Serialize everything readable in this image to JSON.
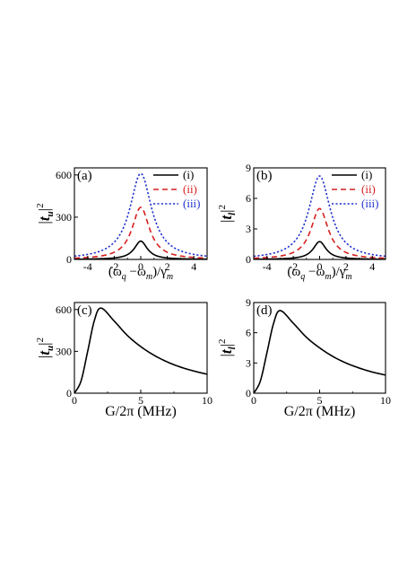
{
  "chart_data": [
    {
      "panel": "(a)",
      "type": "line",
      "ylabel_text": "|t",
      "ylabel_sub": "u",
      "ylabel_sup": "2",
      "xlabel": {
        "open": "(ω",
        "sub1": "q",
        "mid": " −ω",
        "sub2": "m",
        "close": ")/γ",
        "sub3": "m"
      },
      "xlim": [
        -5,
        5
      ],
      "ylim": [
        0,
        650
      ],
      "xticks": [
        -4,
        -2,
        0,
        2,
        4
      ],
      "yticks": [
        0,
        300,
        600
      ],
      "legend": "top-right",
      "series": [
        {
          "name": "(i)",
          "color": "#000000",
          "dash": "solid",
          "peak": 130,
          "width": 0.6
        },
        {
          "name": "(ii)",
          "color": "#d62020",
          "dash": "dashed",
          "peak": 370,
          "width": 0.8
        },
        {
          "name": "(iii)",
          "color": "#2233cc",
          "dash": "dotted",
          "peak": 610,
          "width": 1.0
        }
      ]
    },
    {
      "panel": "(b)",
      "type": "line",
      "ylabel_text": "|t",
      "ylabel_sub": "l",
      "ylabel_sup": "2",
      "xlabel": {
        "open": "(ω",
        "sub1": "q",
        "mid": " −ω",
        "sub2": "m",
        "close": ")/γ",
        "sub3": "m"
      },
      "xlim": [
        -5,
        5
      ],
      "ylim": [
        0,
        9
      ],
      "xticks": [
        -4,
        -2,
        0,
        2,
        4
      ],
      "yticks": [
        0,
        3,
        6,
        9
      ],
      "legend": "top-right",
      "series": [
        {
          "name": "(i)",
          "color": "#000000",
          "dash": "solid",
          "peak": 1.75,
          "width": 0.6
        },
        {
          "name": "(ii)",
          "color": "#d62020",
          "dash": "dashed",
          "peak": 5.0,
          "width": 0.8
        },
        {
          "name": "(iii)",
          "color": "#2233cc",
          "dash": "dotted",
          "peak": 8.2,
          "width": 1.0
        }
      ]
    },
    {
      "panel": "(c)",
      "type": "line",
      "ylabel_text": "|t",
      "ylabel_sub": "u",
      "ylabel_sup": "2",
      "xlabel_text": "G/2π  (MHz)",
      "xlim": [
        0,
        10
      ],
      "ylim": [
        0,
        650
      ],
      "xticks": [
        0,
        5,
        10
      ],
      "yticks": [
        0,
        300,
        600
      ],
      "series": [
        {
          "color": "#000000",
          "peak": 610,
          "peak_x": 2.0,
          "x": [
            0,
            0.5,
            1,
            1.5,
            2,
            3,
            4,
            5,
            6,
            7,
            8,
            9,
            10
          ],
          "y": [
            0,
            88,
            300,
            520,
            610,
            517,
            413,
            334,
            272,
            224,
            187,
            159,
            136
          ]
        }
      ]
    },
    {
      "panel": "(d)",
      "type": "line",
      "ylabel_text": "|t",
      "ylabel_sub": "l",
      "ylabel_sup": "2",
      "xlabel_text": "G/2π  (MHz)",
      "xlim": [
        0,
        10
      ],
      "ylim": [
        0,
        9
      ],
      "xticks": [
        0,
        5,
        10
      ],
      "yticks": [
        0,
        3,
        6,
        9
      ],
      "series": [
        {
          "color": "#000000",
          "peak": 8.2,
          "peak_x": 2.0,
          "x": [
            0,
            0.5,
            1,
            1.5,
            2,
            3,
            4,
            5,
            6,
            7,
            8,
            9,
            10
          ],
          "y": [
            0,
            1.2,
            4.0,
            6.9,
            8.2,
            6.95,
            5.55,
            4.5,
            3.65,
            3.0,
            2.5,
            2.1,
            1.8
          ]
        }
      ]
    }
  ]
}
